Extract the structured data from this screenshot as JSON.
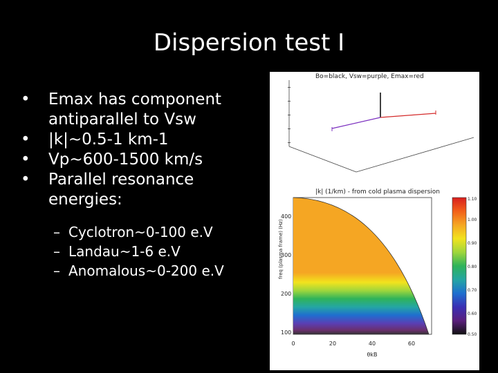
{
  "slide": {
    "title": "Dispersion test I",
    "bullets": [
      "Emax has component antiparallel to Vsw",
      "|k|~0.5-1 km-1",
      "Vp~600-1500 km/s",
      "Parallel resonance energies:"
    ],
    "sub_bullets": [
      "Cyclotron~0-100 e.V",
      "Landau~1-6 e.V",
      "Anomalous~0-200 e.V"
    ],
    "bullet_glyph": "•",
    "dash_glyph": "–"
  },
  "figure": {
    "top_plot": {
      "legend": "Bo=black, Vsw=purple, Emax=red",
      "colors": {
        "Bo": "#000000",
        "Vsw": "#7b2fbf",
        "Emax": "#d42a2a"
      }
    },
    "bottom_plot": {
      "title": "|k| (1/km) - from cold plasma dispersion",
      "ylabel": "freq (plasma frame) (Hz)",
      "xlabel": "θkB",
      "yticks": [
        "400",
        "300",
        "200",
        "100"
      ],
      "xticks": [
        "0",
        "20",
        "40",
        "60"
      ],
      "colorbar_ticks": [
        "1.10",
        "1.00",
        "0.90",
        "0.80",
        "0.70",
        "0.60",
        "0.50"
      ]
    }
  },
  "chart_data": {
    "type": "heatmap",
    "title": "|k| (1/km) - from cold plasma dispersion",
    "xlabel": "θkB",
    "ylabel": "freq (plasma frame) (Hz)",
    "xlim": [
      0,
      70
    ],
    "ylim": [
      80,
      450
    ],
    "colorbar_range": [
      0.5,
      1.1
    ],
    "colorbar_ticks": [
      1.1,
      1.0,
      0.9,
      0.8,
      0.7,
      0.6,
      0.5
    ]
  }
}
